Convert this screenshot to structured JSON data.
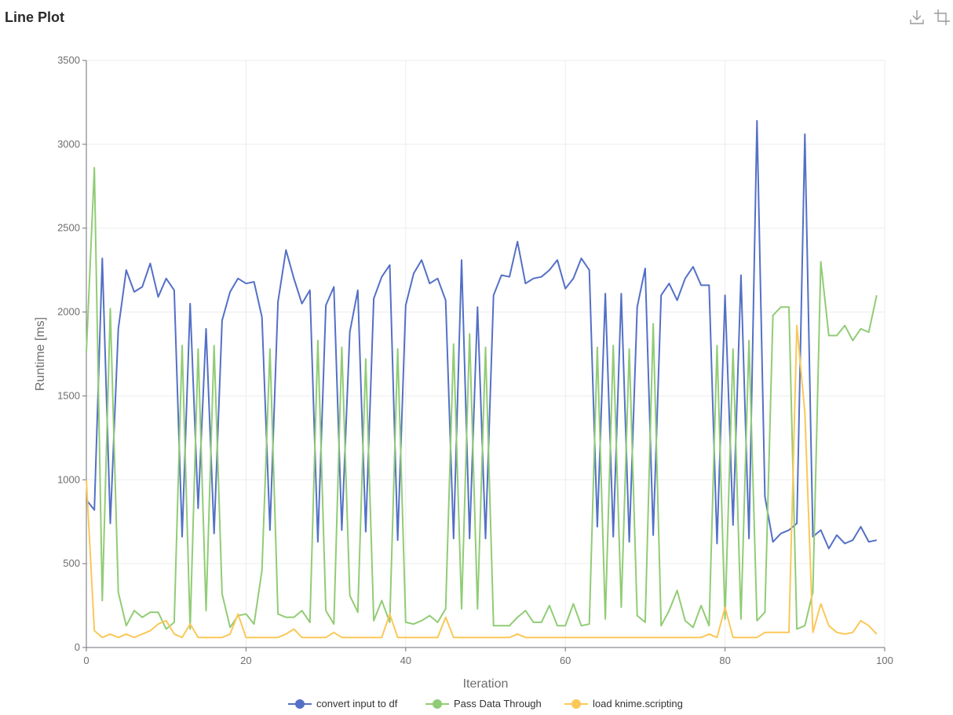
{
  "header": {
    "title": "Line Plot",
    "download_icon": "download-icon",
    "crop_icon": "crop-icon"
  },
  "chart_data": {
    "type": "line",
    "title": "",
    "xlabel": "Iteration",
    "ylabel": "Runtime [ms]",
    "xlim": [
      0,
      100
    ],
    "ylim": [
      0,
      3500
    ],
    "x_ticks": [
      0,
      20,
      40,
      60,
      80,
      100
    ],
    "y_ticks": [
      0,
      500,
      1000,
      1500,
      2000,
      2500,
      3000,
      3500
    ],
    "grid": true,
    "legend_position": "bottom",
    "x": [
      0,
      1,
      2,
      3,
      4,
      5,
      6,
      7,
      8,
      9,
      10,
      11,
      12,
      13,
      14,
      15,
      16,
      17,
      18,
      19,
      20,
      21,
      22,
      23,
      24,
      25,
      26,
      27,
      28,
      29,
      30,
      31,
      32,
      33,
      34,
      35,
      36,
      37,
      38,
      39,
      40,
      41,
      42,
      43,
      44,
      45,
      46,
      47,
      48,
      49,
      50,
      51,
      52,
      53,
      54,
      55,
      56,
      57,
      58,
      59,
      60,
      61,
      62,
      63,
      64,
      65,
      66,
      67,
      68,
      69,
      70,
      71,
      72,
      73,
      74,
      75,
      76,
      77,
      78,
      79,
      80,
      81,
      82,
      83,
      84,
      85,
      86,
      87,
      88,
      89,
      90,
      91,
      92,
      93,
      94,
      95,
      96,
      97,
      98,
      99
    ],
    "series": [
      {
        "name": "convert input to df",
        "color": "#5470c6",
        "values": [
          880,
          820,
          2320,
          740,
          1900,
          2250,
          2120,
          2150,
          2290,
          2090,
          2200,
          2130,
          660,
          2050,
          830,
          1900,
          680,
          1950,
          2120,
          2200,
          2170,
          2180,
          1970,
          700,
          2060,
          2370,
          2200,
          2050,
          2130,
          630,
          2040,
          2150,
          700,
          1880,
          2130,
          690,
          2080,
          2210,
          2280,
          640,
          2040,
          2230,
          2310,
          2170,
          2200,
          2070,
          650,
          2310,
          650,
          2030,
          650,
          2100,
          2220,
          2210,
          2420,
          2170,
          2200,
          2210,
          2250,
          2310,
          2140,
          2200,
          2320,
          2250,
          720,
          2110,
          660,
          2110,
          630,
          2030,
          2260,
          670,
          2100,
          2170,
          2070,
          2200,
          2270,
          2160,
          2160,
          620,
          2100,
          730,
          2220,
          650,
          3140,
          900,
          630,
          680,
          700,
          740,
          3060,
          660,
          700,
          590,
          670,
          620,
          640,
          720,
          630,
          640
        ]
      },
      {
        "name": "Pass Data Through",
        "color": "#91cc75",
        "values": [
          1760,
          2860,
          280,
          2020,
          330,
          130,
          220,
          180,
          210,
          210,
          110,
          150,
          1800,
          110,
          1780,
          220,
          1800,
          320,
          120,
          190,
          200,
          140,
          460,
          1780,
          200,
          180,
          180,
          220,
          150,
          1830,
          220,
          140,
          1790,
          310,
          210,
          1720,
          160,
          280,
          150,
          1780,
          150,
          140,
          160,
          190,
          150,
          230,
          1810,
          230,
          1870,
          230,
          1790,
          130,
          130,
          130,
          180,
          220,
          150,
          150,
          250,
          130,
          130,
          260,
          130,
          140,
          1790,
          170,
          1800,
          240,
          1780,
          190,
          150,
          1930,
          130,
          220,
          340,
          160,
          120,
          250,
          130,
          1800,
          170,
          1780,
          170,
          1830,
          160,
          210,
          1980,
          2030,
          2030,
          110,
          130,
          330,
          2300,
          1860,
          1860,
          1920,
          1830,
          1900,
          1880,
          2100
        ]
      },
      {
        "name": "load knime.scripting",
        "color": "#fac858",
        "values": [
          1000,
          100,
          60,
          80,
          60,
          80,
          60,
          80,
          100,
          140,
          160,
          80,
          60,
          140,
          60,
          60,
          60,
          60,
          80,
          200,
          60,
          60,
          60,
          60,
          60,
          80,
          110,
          60,
          60,
          60,
          60,
          90,
          60,
          60,
          60,
          60,
          60,
          60,
          200,
          60,
          60,
          60,
          60,
          60,
          60,
          180,
          60,
          60,
          60,
          60,
          60,
          60,
          60,
          60,
          80,
          60,
          60,
          60,
          60,
          60,
          60,
          60,
          60,
          60,
          60,
          60,
          60,
          60,
          60,
          60,
          60,
          60,
          60,
          60,
          60,
          60,
          60,
          60,
          80,
          60,
          240,
          60,
          60,
          60,
          60,
          90,
          90,
          90,
          90,
          1920,
          1400,
          90,
          260,
          130,
          90,
          80,
          90,
          160,
          130,
          80
        ]
      }
    ]
  }
}
